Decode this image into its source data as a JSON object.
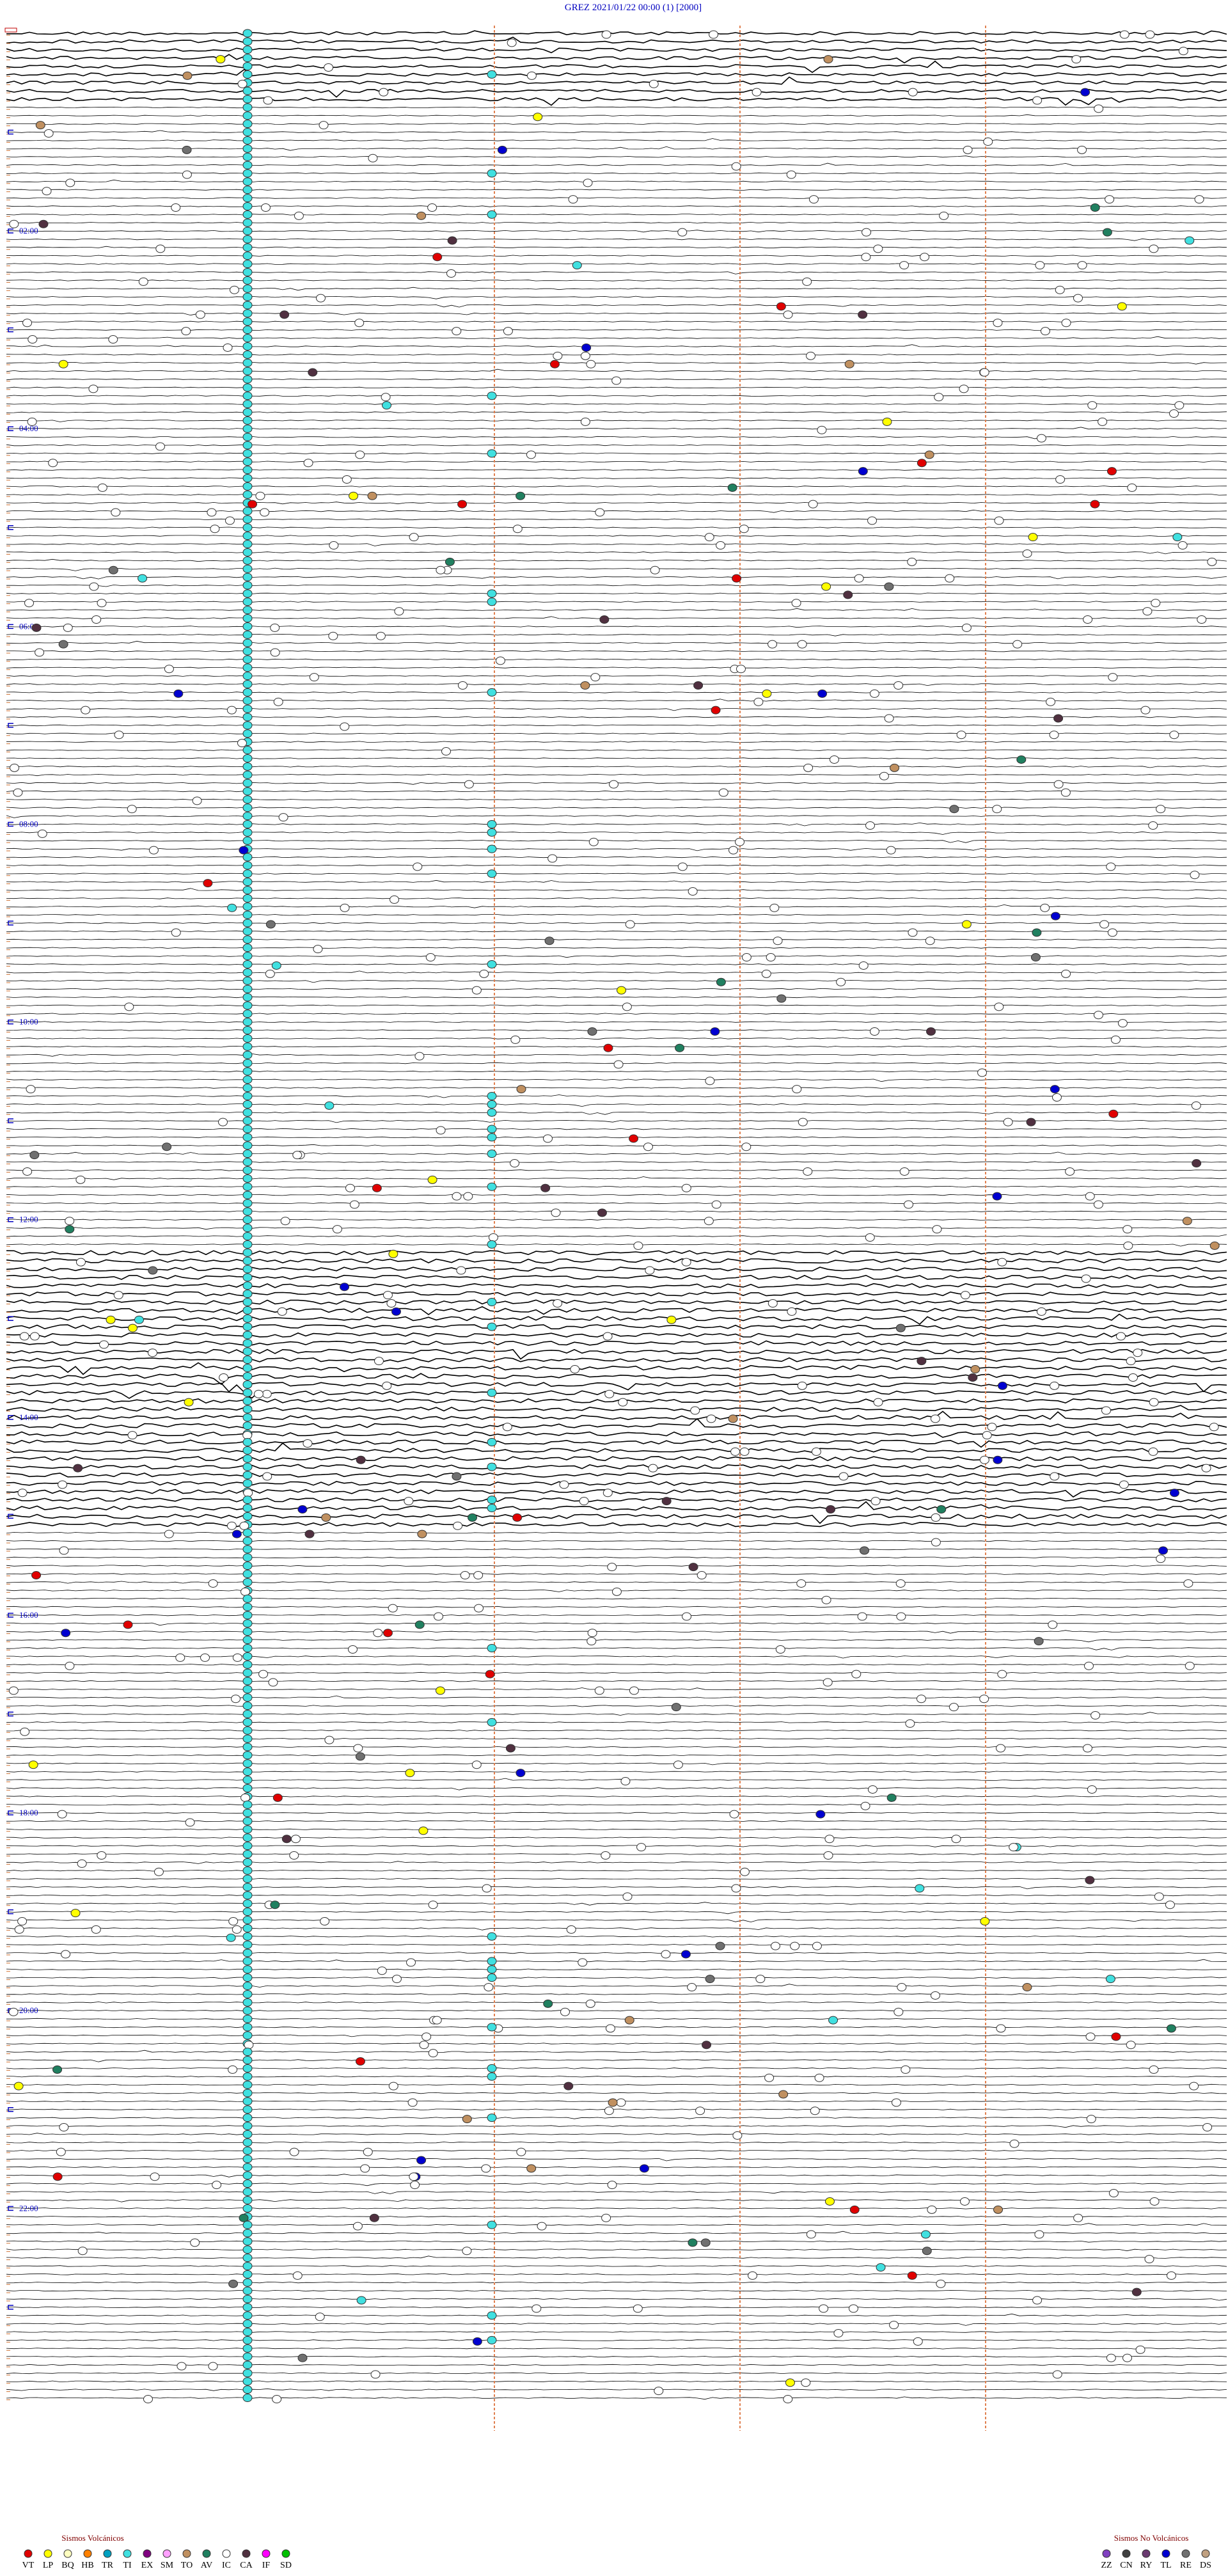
{
  "header": {
    "title": "GREZ     2021/01/22 00:00      (1)    [2000]"
  },
  "time_labels": [
    "02:00",
    "04:00",
    "06:00",
    "08:00",
    "10:00",
    "12:00",
    "14:00",
    "16:00",
    "18:00",
    "20:00",
    "22:00"
  ],
  "legend": {
    "volcanic": {
      "title": "Sismos Volcánicos",
      "items": [
        {
          "label": "VT",
          "color": "#e00000"
        },
        {
          "label": "LP",
          "color": "#ffff00"
        },
        {
          "label": "BQ",
          "color": "#ffffc0"
        },
        {
          "label": "HB",
          "color": "#ff8000"
        },
        {
          "label": "TR",
          "color": "#00a0c0"
        },
        {
          "label": "TI",
          "color": "#40e0e0"
        },
        {
          "label": "EX",
          "color": "#800080"
        },
        {
          "label": "SM",
          "color": "#ffa0ff"
        },
        {
          "label": "TO",
          "color": "#c09060"
        },
        {
          "label": "AV",
          "color": "#208060"
        },
        {
          "label": "IC",
          "color": "#ffffff"
        },
        {
          "label": "CA",
          "color": "#503040"
        },
        {
          "label": "IF",
          "color": "#ff00ff"
        },
        {
          "label": "SD",
          "color": "#00c000"
        }
      ]
    },
    "non_volcanic": {
      "title": "Sismos No Volcánicos",
      "items": [
        {
          "label": "ZZ",
          "color": "#8040c0"
        },
        {
          "label": "CN",
          "color": "#404040"
        },
        {
          "label": "RY",
          "color": "#6a3a70"
        },
        {
          "label": "TL",
          "color": "#0000d0"
        },
        {
          "label": "RE",
          "color": "#707070"
        },
        {
          "label": "DS",
          "color": "#c0a080"
        }
      ]
    }
  }
}
